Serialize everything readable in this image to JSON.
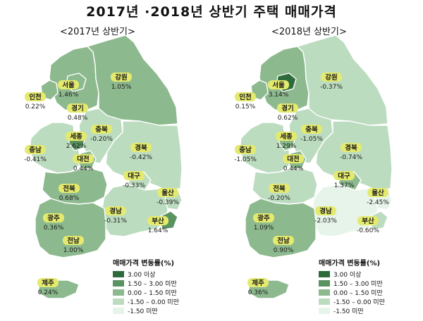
{
  "title": "2017년 ·2018년 상반기 주택 매매가격",
  "colors": {
    "c1": "#2e6b3a",
    "c2": "#5a9260",
    "c3": "#8db98e",
    "c4": "#bcdcc0",
    "c5": "#e6f4ea",
    "label_bg": "#e4ea6e",
    "border": "#ffffff"
  },
  "legend": {
    "title": "매매가격 변동률(%)",
    "items": [
      {
        "label": "3.00 이상",
        "color": "#2e6b3a"
      },
      {
        "label": "1.50 – 3.00 미만",
        "color": "#5a9260"
      },
      {
        "label": "0.00 – 1.50 미만",
        "color": "#8db98e"
      },
      {
        "label": "-1.50 – 0.00 미만",
        "color": "#bcdcc0"
      },
      {
        "label": "-1.50 미만",
        "color": "#e6f4ea"
      }
    ]
  },
  "maps": [
    {
      "subtitle": "<2017년 상반기>",
      "regions": {
        "seoul": {
          "name": "서울",
          "value": "1.46%"
        },
        "incheon": {
          "name": "인천",
          "value": "0.22%"
        },
        "gyeonggi": {
          "name": "경기",
          "value": "0.48%"
        },
        "gangwon": {
          "name": "강원",
          "value": "1.05%"
        },
        "chungbuk": {
          "name": "충북",
          "value": "-0.20%"
        },
        "sejong": {
          "name": "세종",
          "value": "2.62%"
        },
        "chungnam": {
          "name": "충남",
          "value": "-0.41%"
        },
        "daejeon": {
          "name": "대전",
          "value": "0.44%"
        },
        "gyeongbuk": {
          "name": "경북",
          "value": "-0.42%"
        },
        "daegu": {
          "name": "대구",
          "value": "-0.33%"
        },
        "jeonbuk": {
          "name": "전북",
          "value": "0.68%"
        },
        "ulsan": {
          "name": "울산",
          "value": "-0.39%"
        },
        "gwangju": {
          "name": "광주",
          "value": "0.36%"
        },
        "gyeongnam": {
          "name": "경남",
          "value": "-0.31%"
        },
        "busan": {
          "name": "부산",
          "value": "1.64%"
        },
        "jeonnam": {
          "name": "전남",
          "value": "1.00%"
        },
        "jeju": {
          "name": "제주",
          "value": "0.24%"
        }
      }
    },
    {
      "subtitle": "<2018년 상반기>",
      "regions": {
        "seoul": {
          "name": "서울",
          "value": "3.14%"
        },
        "incheon": {
          "name": "인천",
          "value": "0.15%"
        },
        "gyeonggi": {
          "name": "경기",
          "value": "0.62%"
        },
        "gangwon": {
          "name": "강원",
          "value": "-0.37%"
        },
        "chungbuk": {
          "name": "충북",
          "value": "-1.05%"
        },
        "sejong": {
          "name": "세종",
          "value": "1.29%"
        },
        "chungnam": {
          "name": "충남",
          "value": "-1.05%"
        },
        "daejeon": {
          "name": "대전",
          "value": "0.44%"
        },
        "gyeongbuk": {
          "name": "경북",
          "value": "-0.74%"
        },
        "daegu": {
          "name": "대구",
          "value": "1.37%"
        },
        "jeonbuk": {
          "name": "전북",
          "value": "-0.20%"
        },
        "ulsan": {
          "name": "울산",
          "value": "-2.45%"
        },
        "gwangju": {
          "name": "광주",
          "value": "1.09%"
        },
        "gyeongnam": {
          "name": "경남",
          "value": "-2.03%"
        },
        "busan": {
          "name": "부산",
          "value": "-0.60%"
        },
        "jeonnam": {
          "name": "전남",
          "value": "0.90%"
        },
        "jeju": {
          "name": "제주",
          "value": "0.36%"
        }
      }
    }
  ]
}
